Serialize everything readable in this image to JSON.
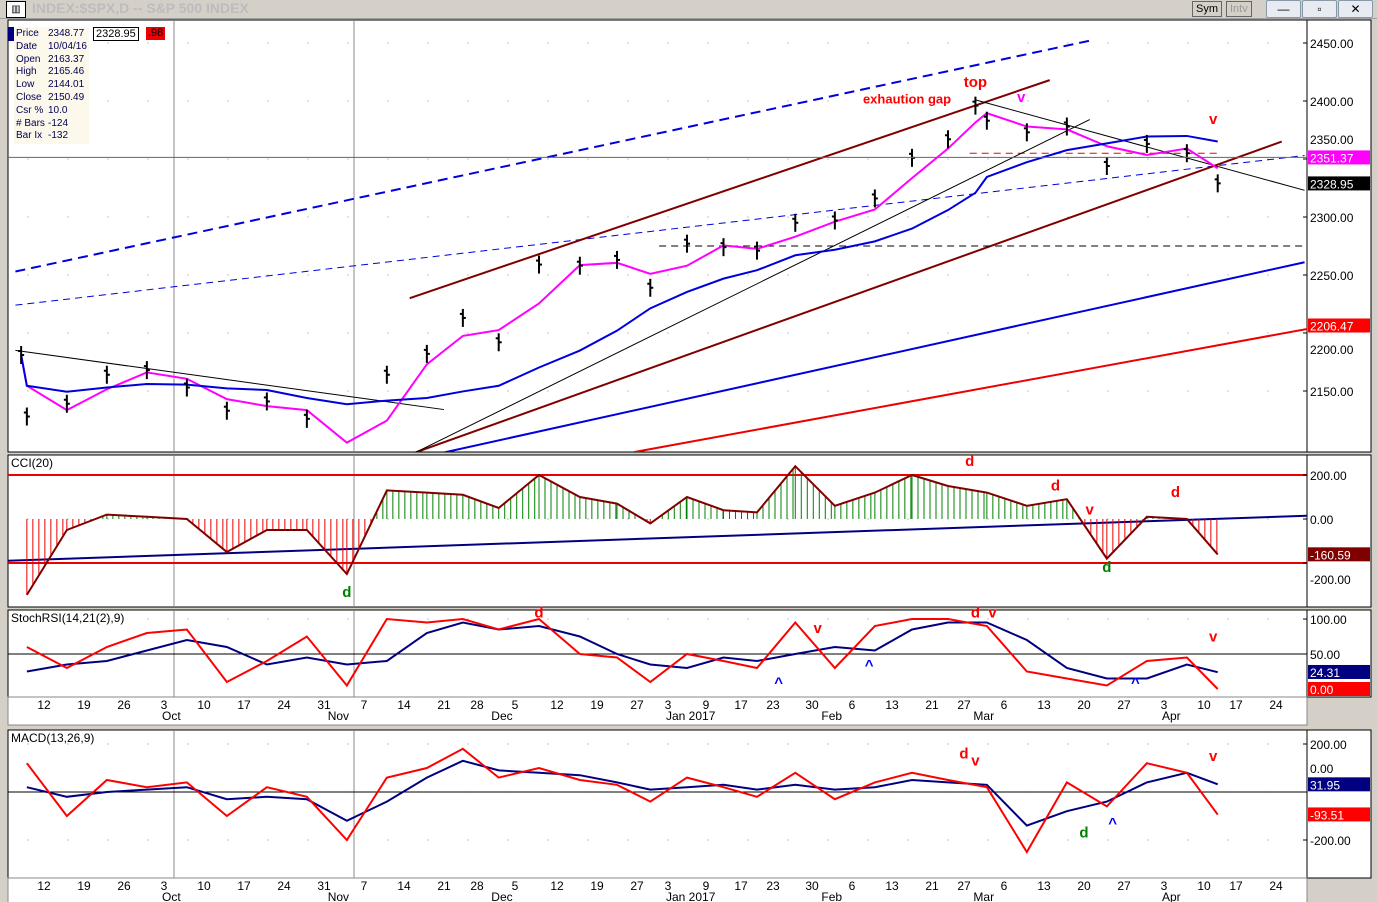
{
  "window": {
    "title": "INDEX:$SPX,D -- S&P 500 INDEX",
    "sym_button": "Sym",
    "intv_button": "Intv",
    "minimize": "—",
    "restore": "▫",
    "close": "✕"
  },
  "info_box": {
    "price_value": "2348.77",
    "cursor_price": "2328.95",
    "change_value": ".98",
    "rows": [
      {
        "k": "Price",
        "v": "2348.77"
      },
      {
        "k": "Date",
        "v": "10/04/16"
      },
      {
        "k": "Open",
        "v": "2163.37"
      },
      {
        "k": "High",
        "v": "2165.46"
      },
      {
        "k": "Low",
        "v": "2144.01"
      },
      {
        "k": "Close",
        "v": "2150.49"
      },
      {
        "k": "Csr %",
        "v": "10.0"
      },
      {
        "k": "# Bars",
        "v": "-124"
      },
      {
        "k": "Bar Ix",
        "v": "-132"
      }
    ]
  },
  "chart_data": [
    {
      "type": "ohlc-bar",
      "name": "",
      "ylim": [
        2105,
        2470
      ],
      "yticks": [
        "2450.00",
        "2400.00",
        "2350.00",
        "2300.00",
        "2250.00",
        "2200.00",
        "2150.00"
      ],
      "ytick_values": [
        2450,
        2400,
        2350,
        2300,
        2250,
        2200,
        2150
      ],
      "x": [
        "2016-09-08",
        "2016-09-09",
        "2016-09-16",
        "2016-09-23",
        "2016-09-30",
        "2016-10-07",
        "2016-10-14",
        "2016-10-21",
        "2016-10-28",
        "2016-11-04",
        "2016-11-11",
        "2016-11-18",
        "2016-11-25",
        "2016-12-02",
        "2016-12-09",
        "2016-12-16",
        "2016-12-23",
        "2016-12-30",
        "2017-01-06",
        "2017-01-13",
        "2017-01-20",
        "2017-01-27",
        "2017-02-03",
        "2017-02-10",
        "2017-02-17",
        "2017-02-24",
        "2017-03-01",
        "2017-03-03",
        "2017-03-10",
        "2017-03-17",
        "2017-03-24",
        "2017-03-31",
        "2017-04-07",
        "2017-04-13"
      ],
      "close": [
        2181,
        2128,
        2139,
        2164,
        2168,
        2153,
        2133,
        2141,
        2126,
        2085,
        2164,
        2182,
        2213,
        2192,
        2259,
        2258,
        2263,
        2239,
        2277,
        2274,
        2271,
        2295,
        2297,
        2316,
        2351,
        2367,
        2396,
        2383,
        2373,
        2378,
        2344,
        2363,
        2355,
        2329
      ],
      "axis_badges": [
        {
          "text": "2351.37",
          "value": 2351.37,
          "bg": "#ff00ff"
        },
        {
          "text": "2328.95",
          "value": 2328.95,
          "bg": "#000000"
        },
        {
          "text": "2206.47",
          "value": 2206.47,
          "bg": "#ff0000"
        }
      ],
      "trendlines": [
        {
          "from": [
            "2016-09-07",
            2253
          ],
          "to": [
            "2017-03-21",
            2452
          ],
          "color": "#0000dd",
          "dash": true,
          "thick": true
        },
        {
          "from": [
            "2016-09-07",
            2224
          ],
          "to": [
            "2017-04-29",
            2353
          ],
          "color": "#0000dd",
          "dash": true,
          "thick": false
        },
        {
          "from": [
            "2016-11-15",
            2230
          ],
          "to": [
            "2017-03-14",
            2418
          ],
          "color": "#800000",
          "dash": false,
          "thick": true
        },
        {
          "from": [
            "2016-11-16",
            2097
          ],
          "to": [
            "2017-04-25",
            2365
          ],
          "color": "#800000",
          "dash": false,
          "thick": true
        },
        {
          "from": [
            "2016-11-21",
            2097
          ],
          "to": [
            "2017-04-29",
            2261
          ],
          "color": "#0000dd",
          "dash": false,
          "thick": true
        },
        {
          "from": [
            "2016-12-26",
            2097
          ],
          "to": [
            "2017-04-30",
            2204
          ],
          "color": "#ee0000",
          "dash": false,
          "thick": true
        },
        {
          "from": [
            "2017-01-01",
            2275
          ],
          "to": [
            "2017-04-29",
            2275
          ],
          "color": "#000000",
          "dash": true,
          "thick": false
        },
        {
          "from": [
            "2017-02-28",
            2355
          ],
          "to": [
            "2017-04-13",
            2355
          ],
          "color": "#ee0000",
          "dash": true,
          "thick": false
        },
        {
          "from": [
            "2016-11-16",
            2097
          ],
          "to": [
            "2017-03-21",
            2384
          ],
          "color": "#000000",
          "dash": false,
          "thick": false
        },
        {
          "from": [
            "2016-09-07",
            2185
          ],
          "to": [
            "2016-11-21",
            2134
          ],
          "color": "#000000",
          "dash": false,
          "thick": false
        },
        {
          "from": [
            "2017-03-01",
            2401
          ],
          "to": [
            "2017-04-29",
            2323
          ],
          "color": "#000000",
          "dash": false,
          "thick": false
        }
      ],
      "annotations": [
        {
          "text": "top",
          "x": "2017-03-01",
          "y": 2412,
          "color": "#ff0000"
        },
        {
          "text": "exhaution gap",
          "x": "2017-02-16",
          "y": 2398,
          "color": "#ff0000"
        },
        {
          "text": "v",
          "x": "2017-03-09",
          "y": 2399,
          "color": "#ff00ff"
        },
        {
          "text": "v",
          "x": "2017-04-12",
          "y": 2380,
          "color": "#ff0000"
        }
      ]
    },
    {
      "type": "bar",
      "name": "CCI(20)",
      "ylim": [
        -390,
        310
      ],
      "yticks": [
        "200.00",
        "0.00",
        "-200.00"
      ],
      "ytick_values": [
        200,
        0,
        -200
      ],
      "x": [
        "2016-09-09",
        "2016-09-16",
        "2016-09-23",
        "2016-09-30",
        "2016-10-07",
        "2016-10-14",
        "2016-10-21",
        "2016-10-28",
        "2016-11-04",
        "2016-11-11",
        "2016-11-18",
        "2016-11-25",
        "2016-12-02",
        "2016-12-09",
        "2016-12-16",
        "2016-12-23",
        "2016-12-30",
        "2017-01-06",
        "2017-01-13",
        "2017-01-20",
        "2017-01-27",
        "2017-02-03",
        "2017-02-10",
        "2017-02-17",
        "2017-02-24",
        "2017-03-03",
        "2017-03-10",
        "2017-03-17",
        "2017-03-24",
        "2017-03-31",
        "2017-04-07",
        "2017-04-13"
      ],
      "values": [
        -345,
        -50,
        20,
        10,
        0,
        -150,
        -50,
        -50,
        -250,
        130,
        120,
        110,
        50,
        200,
        100,
        70,
        -20,
        100,
        40,
        30,
        240,
        60,
        120,
        200,
        150,
        120,
        60,
        90,
        -180,
        10,
        0,
        -161
      ],
      "axis_badges": [
        {
          "text": "-160.59",
          "value": -160.59,
          "bg": "#800000"
        }
      ],
      "annotations": [
        {
          "text": "d",
          "x": "2016-11-04",
          "y": -355,
          "color": "#008000"
        },
        {
          "text": "d",
          "x": "2017-02-28",
          "y": 240,
          "color": "#ff0000"
        },
        {
          "text": "d",
          "x": "2017-03-15",
          "y": 130,
          "color": "#ff0000"
        },
        {
          "text": "v",
          "x": "2017-03-21",
          "y": 20,
          "color": "#ff0000"
        },
        {
          "text": "d",
          "x": "2017-03-24",
          "y": -240,
          "color": "#008000"
        },
        {
          "text": "d",
          "x": "2017-04-05",
          "y": 100,
          "color": "#ff0000"
        }
      ]
    },
    {
      "type": "line",
      "name": "StochRSI(14,21(2),9)",
      "ylim": [
        -12,
        112
      ],
      "yticks": [
        "100.00",
        "50.00"
      ],
      "ytick_values": [
        100,
        50
      ],
      "x": [
        "2016-09-09",
        "2016-09-16",
        "2016-09-23",
        "2016-09-30",
        "2016-10-07",
        "2016-10-14",
        "2016-10-21",
        "2016-10-28",
        "2016-11-04",
        "2016-11-11",
        "2016-11-18",
        "2016-11-25",
        "2016-12-02",
        "2016-12-09",
        "2016-12-16",
        "2016-12-23",
        "2016-12-30",
        "2017-01-06",
        "2017-01-13",
        "2017-01-20",
        "2017-01-27",
        "2017-02-03",
        "2017-02-10",
        "2017-02-17",
        "2017-02-24",
        "2017-03-03",
        "2017-03-10",
        "2017-03-17",
        "2017-03-24",
        "2017-03-31",
        "2017-04-07",
        "2017-04-13"
      ],
      "series": [
        {
          "color": "#ff0000",
          "values": [
            60,
            30,
            60,
            80,
            85,
            10,
            40,
            75,
            5,
            100,
            95,
            100,
            85,
            100,
            50,
            45,
            10,
            50,
            40,
            30,
            95,
            30,
            90,
            100,
            100,
            90,
            25,
            15,
            5,
            40,
            45,
            0
          ]
        },
        {
          "color": "#000080",
          "values": [
            25,
            35,
            40,
            55,
            70,
            60,
            35,
            45,
            35,
            40,
            80,
            95,
            85,
            90,
            75,
            50,
            35,
            30,
            45,
            40,
            50,
            60,
            55,
            85,
            95,
            95,
            70,
            30,
            15,
            15,
            35,
            24
          ]
        }
      ],
      "axis_badges": [
        {
          "text": "24.31",
          "value": 24.31,
          "bg": "#000080"
        },
        {
          "text": "0.00",
          "value": 0,
          "bg": "#ff0000"
        }
      ],
      "annotations": [
        {
          "text": "d",
          "x": "2016-12-09",
          "y": 102,
          "color": "#ff0000"
        },
        {
          "text": "v",
          "x": "2017-01-31",
          "y": 80,
          "color": "#ff0000"
        },
        {
          "text": "^",
          "x": "2017-01-24",
          "y": 2,
          "color": "#0000ff"
        },
        {
          "text": "^",
          "x": "2017-02-09",
          "y": 27,
          "color": "#0000ff"
        },
        {
          "text": "d",
          "x": "2017-03-01",
          "y": 102,
          "color": "#ff0000"
        },
        {
          "text": "v",
          "x": "2017-03-04",
          "y": 102,
          "color": "#ff0000"
        },
        {
          "text": "^",
          "x": "2017-03-29",
          "y": 2,
          "color": "#0000ff"
        },
        {
          "text": "v",
          "x": "2017-04-12",
          "y": 68,
          "color": "#ff0000"
        }
      ]
    },
    {
      "type": "line",
      "name": "MACD(13,26,9)",
      "ylim": [
        -340,
        290
      ],
      "yticks": [
        "200.00",
        "0.00",
        "-200.00"
      ],
      "ytick_values": [
        200,
        0,
        -200
      ],
      "x": [
        "2016-09-09",
        "2016-09-16",
        "2016-09-23",
        "2016-09-30",
        "2016-10-07",
        "2016-10-14",
        "2016-10-21",
        "2016-10-28",
        "2016-11-04",
        "2016-11-11",
        "2016-11-18",
        "2016-11-25",
        "2016-12-02",
        "2016-12-09",
        "2016-12-16",
        "2016-12-23",
        "2016-12-30",
        "2017-01-06",
        "2017-01-13",
        "2017-01-20",
        "2017-01-27",
        "2017-02-03",
        "2017-02-10",
        "2017-02-17",
        "2017-02-24",
        "2017-03-03",
        "2017-03-10",
        "2017-03-17",
        "2017-03-24",
        "2017-03-31",
        "2017-04-07",
        "2017-04-13"
      ],
      "series": [
        {
          "color": "#ff0000",
          "values": [
            120,
            -100,
            50,
            20,
            40,
            -100,
            20,
            -20,
            -200,
            60,
            100,
            180,
            60,
            100,
            50,
            30,
            -40,
            60,
            20,
            -20,
            80,
            -30,
            40,
            80,
            50,
            20,
            -250,
            40,
            -60,
            120,
            80,
            -94
          ]
        },
        {
          "color": "#000080",
          "values": [
            20,
            -20,
            0,
            10,
            20,
            -30,
            -20,
            -30,
            -120,
            -40,
            60,
            130,
            90,
            80,
            70,
            40,
            10,
            20,
            30,
            10,
            30,
            10,
            20,
            50,
            40,
            30,
            -140,
            -80,
            -40,
            40,
            80,
            32
          ]
        }
      ],
      "axis_badges": [
        {
          "text": "31.95",
          "value": 31.95,
          "bg": "#000080"
        },
        {
          "text": "-93.51",
          "value": -93.51,
          "bg": "#ff0000"
        }
      ],
      "annotations": [
        {
          "text": "d",
          "x": "2017-02-27",
          "y": 140,
          "color": "#ff0000"
        },
        {
          "text": "v",
          "x": "2017-03-01",
          "y": 110,
          "color": "#ff0000"
        },
        {
          "text": "d",
          "x": "2017-03-20",
          "y": -190,
          "color": "#008000"
        },
        {
          "text": "^",
          "x": "2017-03-25",
          "y": -150,
          "color": "#0000ff"
        },
        {
          "text": "v",
          "x": "2017-04-12",
          "y": 130,
          "color": "#ff0000"
        }
      ]
    }
  ],
  "x_axis": {
    "day_labels": [
      "12",
      "19",
      "26",
      "3",
      "10",
      "17",
      "24",
      "31",
      "7",
      "14",
      "21",
      "28",
      "5",
      "12",
      "19",
      "27",
      "3",
      "9",
      "17",
      "23",
      "30",
      "6",
      "13",
      "21",
      "27",
      "6",
      "13",
      "20",
      "27",
      "3",
      "10",
      "17",
      "24"
    ],
    "month_labels": [
      {
        "text": "Oct",
        "date": "2016-10-03"
      },
      {
        "text": "Nov",
        "date": "2016-11-01"
      },
      {
        "text": "Dec",
        "date": "2016-12-01"
      },
      {
        "text": "Jan 2017",
        "date": "2017-01-03"
      },
      {
        "text": "Feb",
        "date": "2017-02-01"
      },
      {
        "text": "Mar",
        "date": "2017-03-01"
      },
      {
        "text": "Apr",
        "date": "2017-04-03"
      }
    ]
  }
}
